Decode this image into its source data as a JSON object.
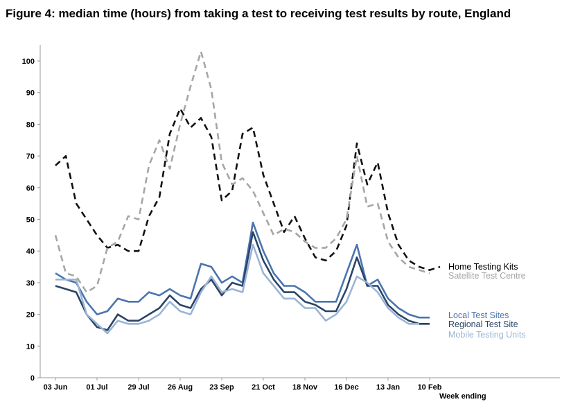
{
  "header": {
    "title": "Figure 4: median time (hours) from taking a test to receiving test results by route, England"
  },
  "chart_data": {
    "type": "line",
    "title": "Figure 4: median time (hours) from taking a test to receiving test results by route, England",
    "xlabel": "Week ending",
    "ylabel": "",
    "ylim": [
      0,
      105
    ],
    "yticks": [
      0,
      10,
      20,
      30,
      40,
      50,
      60,
      70,
      80,
      90,
      100
    ],
    "xticks": [
      {
        "index": 0,
        "label": "03 Jun"
      },
      {
        "index": 4,
        "label": "01 Jul"
      },
      {
        "index": 8,
        "label": "29 Jul"
      },
      {
        "index": 12,
        "label": "26 Aug"
      },
      {
        "index": 16,
        "label": "23 Sep"
      },
      {
        "index": 20,
        "label": "21 Oct"
      },
      {
        "index": 24,
        "label": "18 Nov"
      },
      {
        "index": 28,
        "label": "16 Dec"
      },
      {
        "index": 32,
        "label": "13 Jan"
      },
      {
        "index": 36,
        "label": "10 Feb"
      }
    ],
    "grid": false,
    "legend": "right, labels at line ends",
    "series": [
      {
        "name": "Home Testing Kits",
        "color": "#111111",
        "dash": "dashed",
        "values": [
          67,
          70,
          55,
          50,
          45,
          41,
          42,
          40,
          40,
          51,
          57,
          77,
          85,
          79,
          82,
          76,
          56,
          59,
          77,
          79,
          64,
          55,
          46,
          51,
          44,
          38,
          37,
          40,
          48,
          74,
          61,
          68,
          52,
          42,
          37,
          35,
          34,
          35
        ]
      },
      {
        "name": "Satellite Test Centre",
        "color": "#a6a6a6",
        "dash": "dashed",
        "values": [
          45,
          33,
          32,
          27,
          29,
          41,
          43,
          51,
          50,
          67,
          75,
          66,
          80,
          92,
          103,
          91,
          68,
          61,
          63,
          59,
          52,
          45,
          47,
          46,
          43,
          41,
          41,
          44,
          50,
          70,
          54,
          55,
          43,
          38,
          35,
          34,
          33
        ]
      },
      {
        "name": "Local Test Sites",
        "color": "#4a74b0",
        "dash": "solid",
        "values": [
          33,
          31,
          30,
          24,
          20,
          21,
          25,
          24,
          24,
          27,
          26,
          28,
          26,
          25,
          36,
          35,
          30,
          32,
          30,
          49,
          40,
          33,
          29,
          29,
          27,
          24,
          24,
          24,
          33,
          42,
          29,
          31,
          25,
          22,
          20,
          19,
          19
        ]
      },
      {
        "name": "Regional Test Site",
        "color": "#2a4466",
        "dash": "solid",
        "values": [
          29,
          28,
          27,
          20,
          16,
          15,
          20,
          18,
          18,
          20,
          22,
          26,
          23,
          22,
          28,
          31,
          26,
          30,
          29,
          46,
          37,
          31,
          27,
          27,
          24,
          23,
          21,
          21,
          28,
          38,
          29,
          29,
          23,
          20,
          18,
          17,
          17
        ]
      },
      {
        "name": "Mobile Testing Units",
        "color": "#9ab4d6",
        "dash": "solid",
        "values": [
          31,
          31,
          31,
          20,
          17,
          14,
          18,
          17,
          17,
          18,
          20,
          24,
          21,
          20,
          27,
          32,
          27,
          28,
          27,
          42,
          33,
          29,
          25,
          25,
          22,
          22,
          18,
          20,
          24,
          32,
          30,
          27,
          22,
          19,
          17,
          17
        ]
      }
    ]
  }
}
